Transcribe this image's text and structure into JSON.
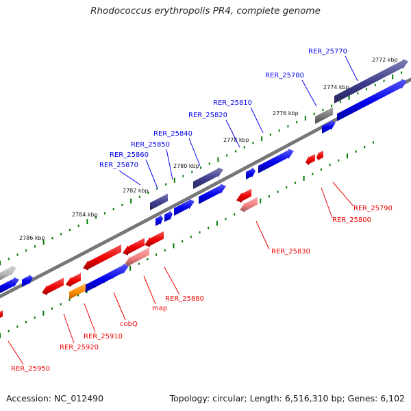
{
  "title": "Rhodococcus erythropolis PR4, complete genome",
  "footer": {
    "accession": "Accession: NC_012490",
    "summary": "Topology: circular; Length: 6,516,310 bp; Genes: 6,102"
  },
  "colors": {
    "forward_gene": "#0000ee",
    "reverse_gene": "#ee0000",
    "highlight_forward": "#3c3c8c",
    "highlight_reverse": "#f08080",
    "rna": "#ff8c00",
    "pseudo": "#777777",
    "tick": "#007700",
    "backbone": "#777777"
  },
  "ticks": [
    {
      "label": "2772 kbp"
    },
    {
      "label": "2774 kbp"
    },
    {
      "label": "2776 kbp"
    },
    {
      "label": "2778 kbp"
    },
    {
      "label": "2780 kbp"
    },
    {
      "label": "2782 kbp"
    },
    {
      "label": "2784 kbp"
    },
    {
      "label": "2786 kbp"
    }
  ],
  "forward_labels": [
    {
      "text": "RER_25770"
    },
    {
      "text": "RER_25780"
    },
    {
      "text": "RER_25810"
    },
    {
      "text": "RER_25820"
    },
    {
      "text": "RER_25840"
    },
    {
      "text": "RER_25850"
    },
    {
      "text": "RER_25860"
    },
    {
      "text": "RER_25870"
    }
  ],
  "reverse_labels": [
    {
      "text": "RER_25790"
    },
    {
      "text": "RER_25800"
    },
    {
      "text": "RER_25830"
    },
    {
      "text": "RER_25880"
    },
    {
      "text": "map"
    },
    {
      "text": "cobQ"
    },
    {
      "text": "RER_25910"
    },
    {
      "text": "RER_25920"
    },
    {
      "text": "RER_25950"
    }
  ]
}
